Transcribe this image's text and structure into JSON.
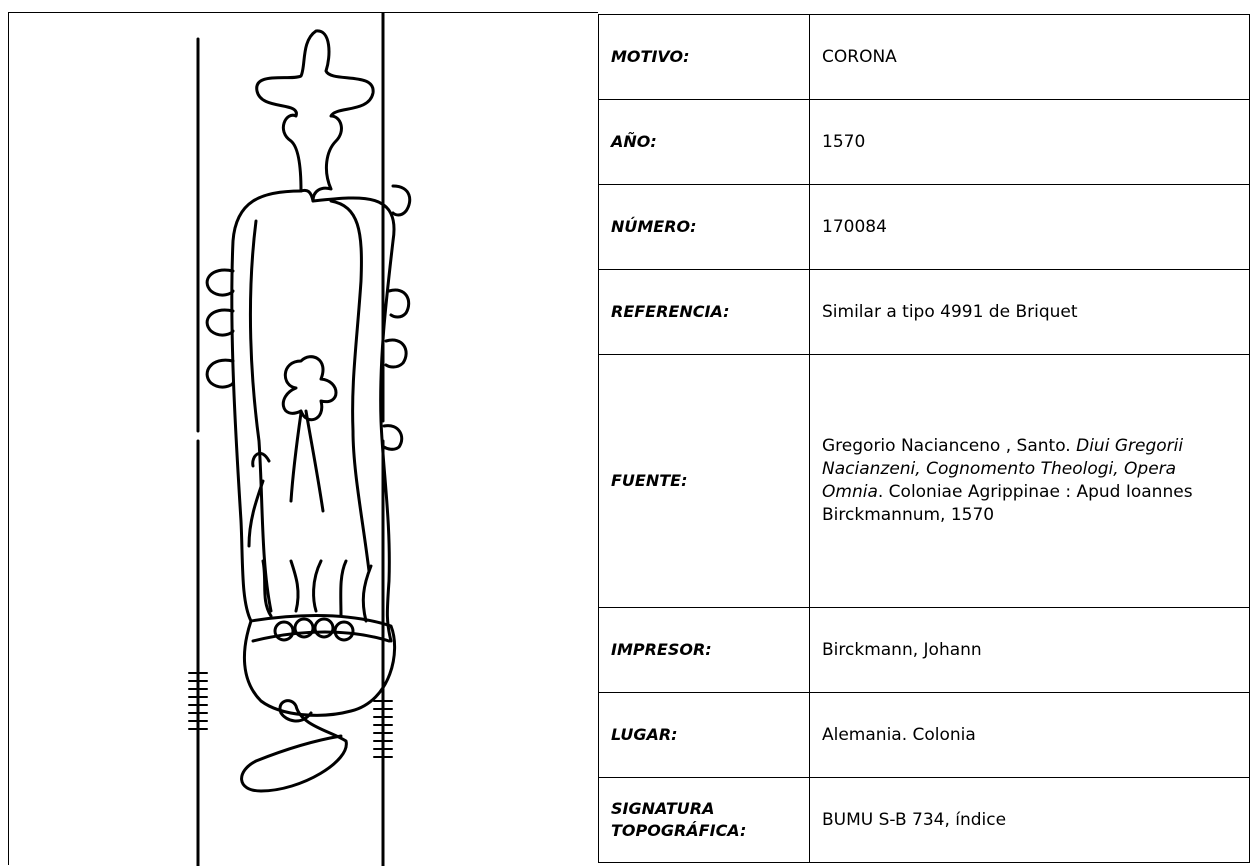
{
  "rows": [
    {
      "label": "MOTIVO:",
      "value": "CORONA"
    },
    {
      "label": "AÑO:",
      "value": "1570"
    },
    {
      "label": "NÚMERO:",
      "value": "170084"
    },
    {
      "label": "REFERENCIA:",
      "value": "Similar a tipo 4991 de Briquet"
    },
    {
      "label": "FUENTE:",
      "segments": [
        "Gregorio Nacianceno , Santo. ",
        "Diui Gregorii Nacianzeni, Cognomento Theologi, Opera Omnia",
        ". Coloniae Agrippinae : Apud Ioannes Birckmannum, 1570"
      ]
    },
    {
      "label": "IMPRESOR:",
      "value": "Birckmann, Johann"
    },
    {
      "label": "LUGAR:",
      "value": "Alemania. Colonia"
    },
    {
      "label": "SIGNATURA TOPOGRÁFICA:",
      "value": "BUMU S-B 734, índice"
    }
  ]
}
